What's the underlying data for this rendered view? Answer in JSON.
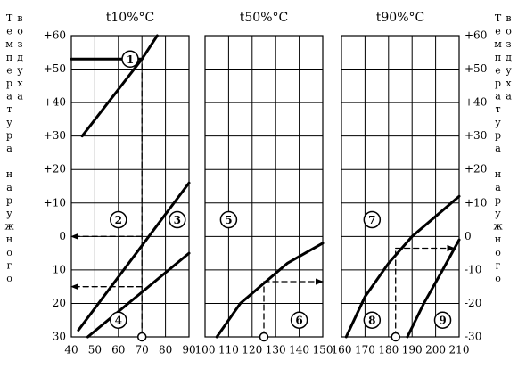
{
  "left_axis_label": "Температура наружного воздуха",
  "right_axis_label": "Температура наружного воздуха",
  "chart_data": [
    {
      "type": "line",
      "title": "t10%°C",
      "grid": true,
      "color": "#000000",
      "xlim": [
        40,
        90
      ],
      "xticks": [
        40,
        50,
        60,
        70,
        80,
        90
      ],
      "ylim": [
        -30,
        60
      ],
      "yticks": [
        {
          "value": 60,
          "label": "+60"
        },
        {
          "value": 50,
          "label": "+50"
        },
        {
          "value": 40,
          "label": "+40"
        },
        {
          "value": 30,
          "label": "+30"
        },
        {
          "value": 20,
          "label": "+20"
        },
        {
          "value": 10,
          "label": "+10"
        },
        0,
        {
          "value": -10,
          "label": "10"
        },
        {
          "value": -20,
          "label": "20"
        },
        {
          "value": -30,
          "label": "30"
        }
      ],
      "lines": [
        {
          "x": [
            44.6,
            70,
            76.5
          ],
          "y": [
            30,
            53,
            60
          ]
        },
        {
          "x": [
            43,
            90
          ],
          "y": [
            -28,
            16
          ]
        },
        {
          "x": [
            47,
            90
          ],
          "y": [
            -30,
            -5
          ]
        },
        {
          "x": [
            70,
            70
          ],
          "y": [
            -30,
            53
          ],
          "dashed": true,
          "start": true
        },
        {
          "x": [
            70,
            40
          ],
          "y": [
            53,
            53
          ]
        },
        {
          "x": [
            70,
            40
          ],
          "y": [
            0,
            0
          ],
          "dashed": true,
          "arrow": true
        },
        {
          "x": [
            70,
            40
          ],
          "y": [
            -15,
            -15
          ],
          "dashed": true,
          "arrow": true
        }
      ],
      "annotations": [
        {
          "text": "1",
          "x": 65,
          "y": 53
        },
        {
          "text": "2",
          "x": 60,
          "y": 5
        },
        {
          "text": "3",
          "x": 85,
          "y": 5
        },
        {
          "text": "4",
          "x": 60,
          "y": -25
        }
      ]
    },
    {
      "type": "line",
      "title": "t50%°C",
      "grid": true,
      "color": "#000000",
      "xlim": [
        100,
        150
      ],
      "xticks": [
        100,
        110,
        120,
        130,
        140,
        150
      ],
      "ylim": [
        -30,
        60
      ],
      "lines": [
        {
          "x": [
            105,
            115,
            125,
            135,
            150
          ],
          "y": [
            -30,
            -20,
            -14,
            -8,
            -2
          ]
        },
        {
          "x": [
            125,
            125
          ],
          "y": [
            -30,
            -13.5
          ],
          "dashed": true,
          "start": true
        },
        {
          "x": [
            125,
            150
          ],
          "y": [
            -13.5,
            -13.5
          ],
          "dashed": true,
          "arrow": true
        }
      ],
      "annotations": [
        {
          "text": "5",
          "x": 110,
          "y": 5
        },
        {
          "text": "6",
          "x": 140,
          "y": -25
        }
      ]
    },
    {
      "type": "line",
      "title": "t90%°C",
      "grid": true,
      "color": "#000000",
      "xlim": [
        160,
        210
      ],
      "xticks": [
        160,
        170,
        180,
        190,
        200,
        210
      ],
      "ylim": [
        -30,
        60
      ],
      "yticks": [
        {
          "value": 60,
          "label": "+60"
        },
        {
          "value": 50,
          "label": "+50"
        },
        {
          "value": 40,
          "label": "+40"
        },
        {
          "value": 30,
          "label": "+30"
        },
        {
          "value": 20,
          "label": "+20"
        },
        {
          "value": 10,
          "label": "+10"
        },
        0,
        -10,
        -20,
        -30
      ],
      "lines": [
        {
          "x": [
            162,
            170,
            180,
            190,
            200,
            210
          ],
          "y": [
            -30,
            -18,
            -8,
            0,
            6,
            12
          ]
        },
        {
          "x": [
            188,
            195,
            203,
            210
          ],
          "y": [
            -30,
            -20,
            -10,
            -1
          ]
        },
        {
          "x": [
            183,
            183
          ],
          "y": [
            -30,
            -3.5
          ],
          "dashed": true,
          "start": true
        },
        {
          "x": [
            183,
            208
          ],
          "y": [
            -3.5,
            -3.5
          ],
          "dashed": true,
          "arrow": true
        }
      ],
      "annotations": [
        {
          "text": "7",
          "x": 173,
          "y": 5
        },
        {
          "text": "8",
          "x": 173,
          "y": -25
        },
        {
          "text": "9",
          "x": 203,
          "y": -25
        }
      ]
    }
  ]
}
